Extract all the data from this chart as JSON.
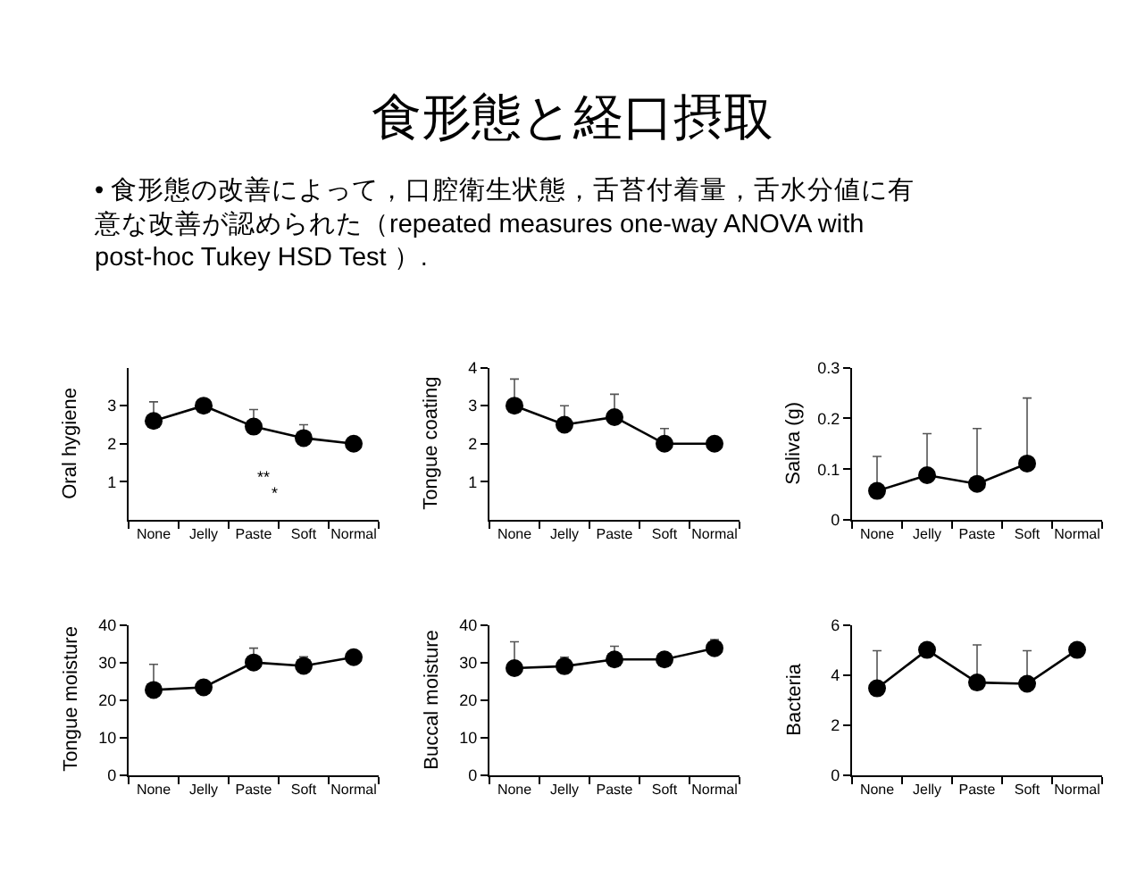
{
  "chart_data": [
    {
      "type": "other",
      "title": "食形態と経口摂取",
      "subtitle": "• 食形態の改善によって，口腔衛生状態，舌苔付着量，舌水分値に有意な改善が認められた（repeated measures one-way ANOVA with post-hoc Tukey HSD Test ）."
    },
    {
      "type": "line",
      "ylabel": "Oral hygiene",
      "categories": [
        "None",
        "Jelly",
        "Paste",
        "Soft",
        "Normal"
      ],
      "series": [
        {
          "color": "#000000",
          "values": [
            2.6,
            3.0,
            2.45,
            2.15,
            2.0
          ],
          "errors": [
            [
              2.6,
              3.1
            ],
            null,
            [
              2.45,
              2.9
            ],
            [
              2.15,
              2.5
            ],
            null
          ]
        }
      ],
      "ylim": [
        0,
        4
      ],
      "yticks": [
        1,
        2,
        3
      ],
      "marker": "circle",
      "annotations": [
        "**",
        "*"
      ]
    },
    {
      "type": "line",
      "ylabel": "Tongue coating",
      "categories": [
        "None",
        "Jelly",
        "Paste",
        "Soft",
        "Normal"
      ],
      "series": [
        {
          "color": "#000000",
          "values": [
            3.0,
            2.5,
            2.7,
            2.0,
            2.0
          ],
          "errors": [
            [
              3.0,
              3.7
            ],
            [
              2.5,
              3.0
            ],
            [
              2.7,
              3.3
            ],
            [
              2.0,
              2.4
            ],
            null
          ]
        }
      ],
      "ylim": [
        0,
        4
      ],
      "yticks": [
        1,
        2,
        3,
        4
      ],
      "marker": "circle"
    },
    {
      "type": "line",
      "ylabel": "Saliva (g)",
      "categories": [
        "None",
        "Jelly",
        "Paste",
        "Soft",
        "Normal"
      ],
      "series": [
        {
          "color": "#000000",
          "values": [
            0.057,
            0.088,
            0.071,
            0.111,
            null
          ],
          "errors": [
            [
              0.057,
              0.125
            ],
            [
              0.088,
              0.17
            ],
            [
              0.071,
              0.18
            ],
            [
              0.111,
              0.24
            ],
            null
          ]
        }
      ],
      "ylim": [
        0,
        0.3
      ],
      "yticks": [
        0,
        0.1,
        0.2,
        0.3
      ],
      "marker": "circle"
    },
    {
      "type": "line",
      "ylabel": "Tongue moisture",
      "categories": [
        "None",
        "Jelly",
        "Paste",
        "Soft",
        "Normal"
      ],
      "series": [
        {
          "color": "#000000",
          "values": [
            22.7,
            23.4,
            30.0,
            29.1,
            31.4
          ],
          "errors": [
            [
              22.7,
              29.5
            ],
            null,
            [
              30.0,
              33.8
            ],
            [
              29.1,
              31.5
            ],
            null
          ]
        }
      ],
      "ylim": [
        0,
        40
      ],
      "yticks": [
        0,
        10,
        20,
        30,
        40
      ],
      "marker": "circle"
    },
    {
      "type": "line",
      "ylabel": "Buccal moisture",
      "categories": [
        "None",
        "Jelly",
        "Paste",
        "Soft",
        "Normal"
      ],
      "series": [
        {
          "color": "#000000",
          "values": [
            28.5,
            29.0,
            30.8,
            30.8,
            33.8
          ],
          "errors": [
            [
              28.5,
              35.5
            ],
            [
              29.0,
              31.4
            ],
            [
              30.8,
              34.3
            ],
            null,
            [
              33.8,
              36.1
            ]
          ]
        }
      ],
      "ylim": [
        0,
        40
      ],
      "yticks": [
        0,
        10,
        20,
        30,
        40
      ],
      "marker": "circle"
    },
    {
      "type": "line",
      "ylabel": "Bacteria",
      "categories": [
        "None",
        "Jelly",
        "Paste",
        "Soft",
        "Normal"
      ],
      "series": [
        {
          "color": "#000000",
          "values": [
            3.47,
            5.0,
            3.7,
            3.65,
            5.0
          ],
          "errors": [
            [
              3.47,
              4.97
            ],
            null,
            [
              3.7,
              5.2
            ],
            [
              3.65,
              4.97
            ],
            null
          ]
        }
      ],
      "ylim": [
        0,
        6
      ],
      "yticks": [
        0,
        2,
        4,
        6
      ],
      "marker": "circle"
    }
  ]
}
